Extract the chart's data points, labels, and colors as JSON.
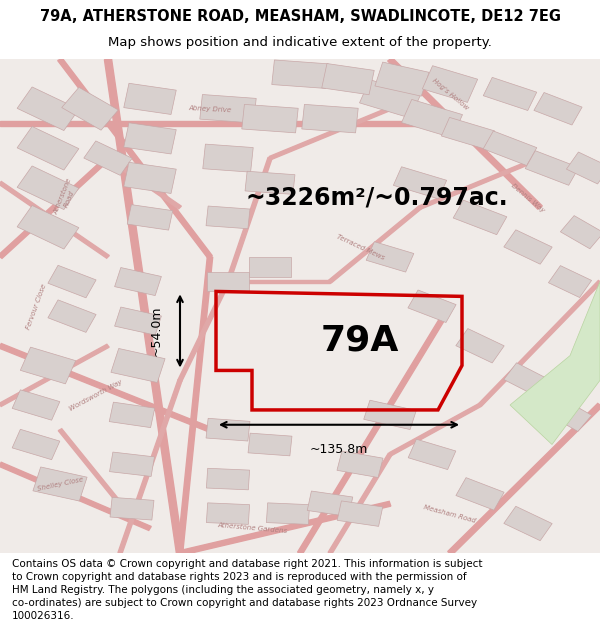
{
  "title_line1": "79A, ATHERSTONE ROAD, MEASHAM, SWADLINCOTE, DE12 7EG",
  "title_line2": "Map shows position and indicative extent of the property.",
  "area_label": "~3226m²/~0.797ac.",
  "plot_label": "79A",
  "width_label": "~135.8m",
  "height_label": "~54.0m",
  "footer_lines": [
    "Contains OS data © Crown copyright and database right 2021. This information is subject",
    "to Crown copyright and database rights 2023 and is reproduced with the permission of",
    "HM Land Registry. The polygons (including the associated geometry, namely x, y",
    "co-ordinates) are subject to Crown copyright and database rights 2023 Ordnance Survey",
    "100026316."
  ],
  "map_bg": "#f0ebe8",
  "red_outline": "#cc0000",
  "building_fill": "#d8d0ce",
  "building_edge": "#c8a8a8",
  "street_color": "#e0a0a0",
  "park_fill": "#d4e8c8",
  "park_edge": "#b8d4a0",
  "road_label_color": "#b08080",
  "fig_width": 6.0,
  "fig_height": 6.25,
  "dpi": 100
}
